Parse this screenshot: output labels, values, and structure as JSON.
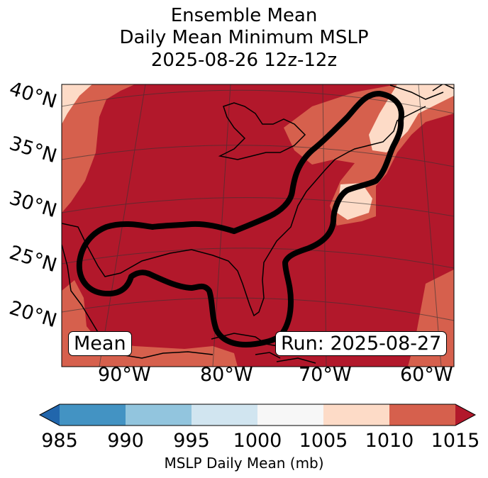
{
  "title": {
    "line1": "Ensemble Mean",
    "line2": "Daily Mean Minimum MSLP",
    "line3": "2025-08-26 12z-12z"
  },
  "lat_labels": [
    "40°N",
    "35°N",
    "30°N",
    "25°N",
    "20°N"
  ],
  "lon_labels": [
    "90°W",
    "80°W",
    "70°W",
    "60°W"
  ],
  "box_left": "Mean",
  "box_right": "Run: 2025-08-27",
  "colorbar": {
    "ticks": [
      "985",
      "990",
      "995",
      "1000",
      "1005",
      "1010",
      "1015"
    ],
    "colors": [
      "#2166ac",
      "#4393c3",
      "#92c5de",
      "#d1e5f0",
      "#f7f7f7",
      "#fddbc7",
      "#d6604d",
      "#b2182b"
    ],
    "label": "MSLP Daily Mean (mb)"
  }
}
